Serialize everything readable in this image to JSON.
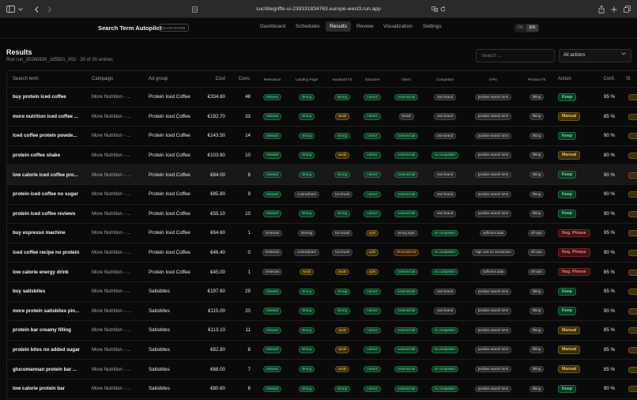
{
  "browser": {
    "url": "suchbegriffe-ui-239331834763.europe-west3.run.app"
  },
  "app": {
    "brand": "Search Term Autopilot",
    "badge": "HACKATHON",
    "tabs": [
      "Dashboard",
      "Schedules",
      "Results",
      "Review",
      "Visualization",
      "Settings"
    ],
    "active_tab": "Results",
    "lang": [
      "DE",
      "EN"
    ]
  },
  "page": {
    "title": "Results",
    "subtitle": "Run run_20260830_195501_002 · 30 of 30 entries",
    "search_placeholder": "Search ...",
    "filter_value": "All actions"
  },
  "table": {
    "headers": {
      "search_term": "Search term",
      "campaign": "Campaign",
      "ad_group": "Ad group",
      "cost": "Cost",
      "conv": "Conv.",
      "relevance": "Relevance",
      "landing": "Landing Page",
      "keyword_fit": "Keyword Fit",
      "structure": "Structure",
      "intent": "Intent",
      "competitor": "Competitor",
      "kpis": "KPIs",
      "product_fit": "Product Fit",
      "action": "Action",
      "conf": "Conf.",
      "status": "St"
    },
    "rows": [
      {
        "term": "buy protein iced coffee",
        "campaign": "More Nutrition - ...",
        "adgroup": "Protein Iced Coffee",
        "cost": "€334.80",
        "conv": "48",
        "rel": "relevant",
        "lp": "strong",
        "kw": "strong",
        "st": "correct",
        "intent": "commercial",
        "comp": "own brand",
        "kpi": "positive search term",
        "pf": "fitting",
        "action": "Keep",
        "conf": "95 %"
      },
      {
        "term": "more nutrition iced coffee ...",
        "campaign": "More Nutrition - ...",
        "adgroup": "Protein Iced Coffee",
        "cost": "€192.70",
        "conv": "33",
        "rel": "relevant",
        "lp": "strong",
        "kw": "weak",
        "st": "correct",
        "intent": "brand",
        "comp": "own brand",
        "kpi": "positive search term",
        "pf": "fitting",
        "action": "Manual",
        "conf": "85 %"
      },
      {
        "term": "iced coffee protein powde...",
        "campaign": "More Nutrition - ...",
        "adgroup": "Protein Iced Coffee",
        "cost": "€143.50",
        "conv": "14",
        "rel": "relevant",
        "lp": "strong",
        "kw": "strong",
        "st": "correct",
        "intent": "commercial",
        "comp": "own brand",
        "kpi": "positive search term",
        "pf": "fitting",
        "action": "Keep",
        "conf": "90 %"
      },
      {
        "term": "protein coffee shake",
        "campaign": "More Nutrition - ...",
        "adgroup": "Protein Iced Coffee",
        "cost": "€103.60",
        "conv": "10",
        "rel": "relevant",
        "lp": "strong",
        "kw": "weak",
        "st": "correct",
        "intent": "commercial",
        "comp": "no competitor",
        "kpi": "positive search term",
        "pf": "fitting",
        "action": "Manual",
        "conf": "80 %"
      },
      {
        "term": "low calorie iced coffee pro...",
        "campaign": "More Nutrition - ...",
        "adgroup": "Protein Iced Coffee",
        "cost": "€84.00",
        "conv": "8",
        "rel": "relevant",
        "lp": "strong",
        "kw": "strong",
        "st": "correct",
        "intent": "commercial",
        "comp": "own brand",
        "kpi": "positive search term",
        "pf": "fitting",
        "action": "Keep",
        "conf": "90 %"
      },
      {
        "term": "protein iced coffee no sugar",
        "campaign": "More Nutrition - ...",
        "adgroup": "Protein Iced Coffee",
        "cost": "€85.80",
        "conv": "9",
        "rel": "relevant",
        "lp": "contradicted",
        "kw": "too broad",
        "st": "correct",
        "intent": "commercial",
        "comp": "own brand",
        "kpi": "positive search term",
        "pf": "fitting",
        "action": "Keep",
        "conf": "90 %"
      },
      {
        "term": "protein iced coffee reviews",
        "campaign": "More Nutrition - ...",
        "adgroup": "Protein Iced Coffee",
        "cost": "€55.10",
        "conv": "10",
        "rel": "relevant",
        "lp": "strong",
        "kw": "strong",
        "st": "correct",
        "intent": "commercial",
        "comp": "own brand",
        "kpi": "positive search term",
        "pf": "fitting",
        "action": "Keep",
        "conf": "90 %"
      },
      {
        "term": "buy espresso machine",
        "campaign": "More Nutrition - ...",
        "adgroup": "Protein Iced Coffee",
        "cost": "€64.60",
        "conv": "1",
        "rel": "irrelevant",
        "lp": "missing",
        "kw": "too broad",
        "st": "split",
        "intent": "wrong topic",
        "comp": "no competitor",
        "kpi": "sufficient data",
        "pf": "off topic",
        "action": "Neg. Phrase",
        "conf": "95 %"
      },
      {
        "term": "iced coffee recipe no protein",
        "campaign": "More Nutrition - ...",
        "adgroup": "Protein Iced Coffee",
        "cost": "€46.40",
        "conv": "0",
        "rel": "irrelevant",
        "lp": "contradicted",
        "kw": "too broad",
        "st": "split",
        "intent": "informational",
        "comp": "no competitor",
        "kpi": "high cost no conversion",
        "pf": "off topic",
        "action": "Neg. Phrase",
        "conf": "90 %"
      },
      {
        "term": "low calorie energy drink",
        "campaign": "More Nutrition - ...",
        "adgroup": "Protein Iced Coffee",
        "cost": "€45.00",
        "conv": "1",
        "rel": "irrelevant",
        "lp": "weak",
        "kw": "weak",
        "st": "split",
        "intent": "commercial",
        "comp": "no competitor",
        "kpi": "sufficient data",
        "pf": "off topic",
        "action": "Neg. Phrase",
        "conf": "85 %"
      },
      {
        "term": "buy satisbites",
        "campaign": "More Nutrition - ...",
        "adgroup": "Satisbites",
        "cost": "€197.60",
        "conv": "29",
        "rel": "relevant",
        "lp": "strong",
        "kw": "strong",
        "st": "correct",
        "intent": "commercial",
        "comp": "own brand",
        "kpi": "positive search term",
        "pf": "fitting",
        "action": "Keep",
        "conf": "95 %"
      },
      {
        "term": "more protein satisbites pin...",
        "campaign": "More Nutrition - ...",
        "adgroup": "Satisbites",
        "cost": "€115.00",
        "conv": "20",
        "rel": "relevant",
        "lp": "strong",
        "kw": "strong",
        "st": "correct",
        "intent": "commercial",
        "comp": "own brand",
        "kpi": "positive search term",
        "pf": "fitting",
        "action": "Keep",
        "conf": "90 %"
      },
      {
        "term": "protein bar creamy filling",
        "campaign": "More Nutrition - ...",
        "adgroup": "Satisbites",
        "cost": "€113.10",
        "conv": "11",
        "rel": "relevant",
        "lp": "strong",
        "kw": "weak",
        "st": "correct",
        "intent": "commercial",
        "comp": "no competitor",
        "kpi": "positive search term",
        "pf": "fitting",
        "action": "Manual",
        "conf": "85 %"
      },
      {
        "term": "protein bites no added sugar",
        "campaign": "More Nutrition - ...",
        "adgroup": "Satisbites",
        "cost": "€82.80",
        "conv": "8",
        "rel": "relevant",
        "lp": "strong",
        "kw": "weak",
        "st": "correct",
        "intent": "commercial",
        "comp": "no competitor",
        "kpi": "positive search term",
        "pf": "fitting",
        "action": "Manual",
        "conf": "85 %"
      },
      {
        "term": "glucomannan protein bar ...",
        "campaign": "More Nutrition - ...",
        "adgroup": "Satisbites",
        "cost": "€68.00",
        "conv": "7",
        "rel": "relevant",
        "lp": "strong",
        "kw": "weak",
        "st": "correct",
        "intent": "commercial",
        "comp": "no competitor",
        "kpi": "positive search term",
        "pf": "fitting",
        "action": "Manual",
        "conf": "85 %"
      },
      {
        "term": "low calorie protein bar",
        "campaign": "More Nutrition - ...",
        "adgroup": "Satisbites",
        "cost": "€80.60",
        "conv": "8",
        "rel": "relevant",
        "lp": "strong",
        "kw": "strong",
        "st": "correct",
        "intent": "commercial",
        "comp": "no competitor",
        "kpi": "positive search term",
        "pf": "fitting",
        "action": "Keep",
        "conf": "90 %"
      }
    ],
    "highlighted_row": 4
  }
}
